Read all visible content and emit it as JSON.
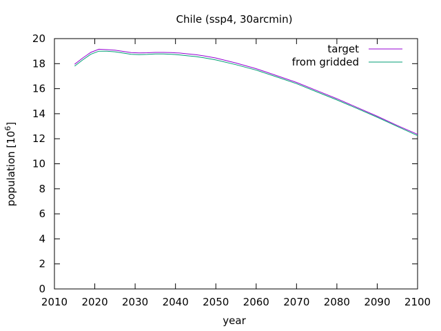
{
  "chart_data": {
    "type": "line",
    "title": "Chile (ssp4, 30arcmin)",
    "xlabel": "year",
    "ylabel_main": "population [10",
    "ylabel_sup": "6",
    "ylabel_close": "]",
    "xlim": [
      2010,
      2100
    ],
    "ylim": [
      0,
      20
    ],
    "xticks": [
      2010,
      2020,
      2030,
      2040,
      2050,
      2060,
      2070,
      2080,
      2090,
      2100
    ],
    "yticks": [
      0,
      2,
      4,
      6,
      8,
      10,
      12,
      14,
      16,
      18,
      20
    ],
    "grid": false,
    "legend_position": "top-right",
    "series": [
      {
        "name": "target",
        "color": "#9400d3",
        "x": [
          2015,
          2017,
          2019,
          2021,
          2023,
          2025,
          2027,
          2029,
          2031,
          2033,
          2035,
          2037,
          2039,
          2041,
          2043,
          2045,
          2047,
          2050,
          2055,
          2060,
          2065,
          2070,
          2075,
          2080,
          2085,
          2090,
          2095,
          2100
        ],
        "values": [
          17.95,
          18.45,
          18.9,
          19.15,
          19.12,
          19.08,
          18.98,
          18.88,
          18.86,
          18.87,
          18.9,
          18.9,
          18.88,
          18.85,
          18.78,
          18.72,
          18.62,
          18.45,
          18.05,
          17.6,
          17.05,
          16.5,
          15.85,
          15.2,
          14.5,
          13.8,
          13.05,
          12.35
        ]
      },
      {
        "name": "from gridded",
        "color": "#009e73",
        "x": [
          2015,
          2017,
          2019,
          2021,
          2023,
          2025,
          2027,
          2029,
          2031,
          2033,
          2035,
          2037,
          2039,
          2041,
          2043,
          2045,
          2047,
          2050,
          2055,
          2060,
          2065,
          2070,
          2075,
          2080,
          2085,
          2090,
          2095,
          2100
        ],
        "values": [
          17.8,
          18.3,
          18.75,
          19.0,
          19.0,
          18.95,
          18.85,
          18.75,
          18.72,
          18.74,
          18.77,
          18.77,
          18.75,
          18.7,
          18.63,
          18.57,
          18.47,
          18.3,
          17.92,
          17.48,
          16.95,
          16.4,
          15.75,
          15.1,
          14.42,
          13.72,
          12.98,
          12.25
        ]
      }
    ]
  }
}
